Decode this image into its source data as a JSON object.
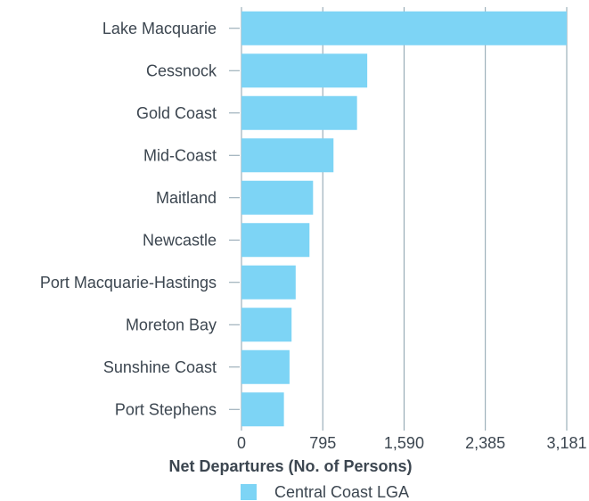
{
  "chart_data": {
    "type": "bar",
    "orientation": "horizontal",
    "categories": [
      "Lake Macquarie",
      "Cessnock",
      "Gold Coast",
      "Mid-Coast",
      "Maitland",
      "Newcastle",
      "Port Macquarie-Hastings",
      "Moreton Bay",
      "Sunshine Coast",
      "Port Stephens"
    ],
    "series": [
      {
        "name": "Central Coast LGA",
        "values": [
          3181,
          1230,
          1130,
          900,
          700,
          665,
          530,
          490,
          470,
          415
        ],
        "color": "#7dd4f5"
      }
    ],
    "xlabel": "Net Departures (No. of Persons)",
    "ylabel": "",
    "xticks": [
      "0",
      "795",
      "1,590",
      "2,385",
      "3,181"
    ],
    "xlim": [
      0,
      3181
    ],
    "grid": true,
    "gridColor": "#8aa0ad",
    "legend": "bottom"
  }
}
